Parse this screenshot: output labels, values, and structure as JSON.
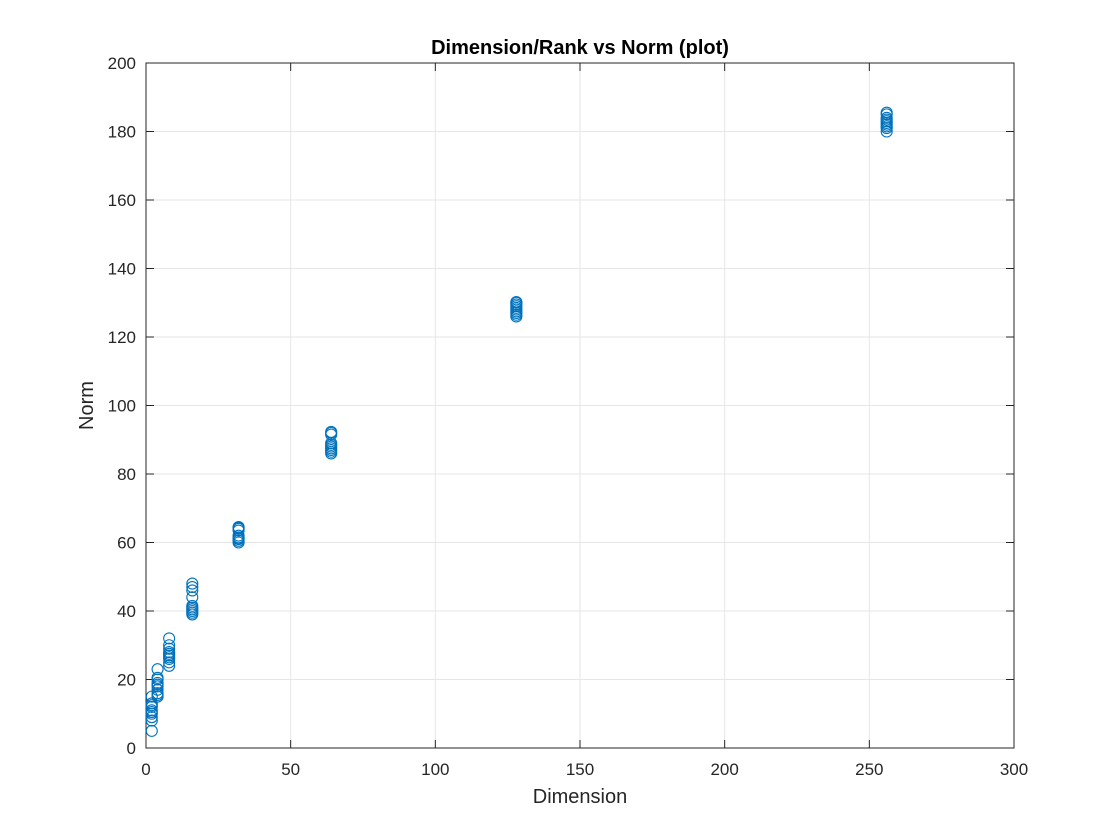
{
  "chart_data": {
    "type": "scatter",
    "title": "Dimension/Rank vs Norm (plot)",
    "xlabel": "Dimension",
    "ylabel": "Norm",
    "xlim": [
      0,
      300
    ],
    "ylim": [
      0,
      200
    ],
    "xticks": [
      0,
      50,
      100,
      150,
      200,
      250,
      300
    ],
    "yticks": [
      0,
      20,
      40,
      60,
      80,
      100,
      120,
      140,
      160,
      180,
      200
    ],
    "xtick_labels": [
      "0",
      "50",
      "100",
      "150",
      "200",
      "250",
      "300"
    ],
    "ytick_labels": [
      "0",
      "20",
      "40",
      "60",
      "80",
      "100",
      "120",
      "140",
      "160",
      "180",
      "200"
    ],
    "grid": true,
    "marker": "circle-open",
    "color": "#0072BD",
    "series": [
      {
        "x": [
          2,
          2,
          2,
          2,
          2,
          2,
          2,
          2,
          2,
          2,
          4,
          4,
          4,
          4,
          4,
          4,
          4,
          4,
          4,
          4,
          8,
          8,
          8,
          8,
          8,
          8,
          8,
          8,
          8,
          8,
          16,
          16,
          16,
          16,
          16,
          16,
          16,
          16,
          16,
          16,
          32,
          32,
          32,
          32,
          32,
          32,
          32,
          32,
          32,
          32,
          64,
          64,
          64,
          64,
          64,
          64,
          64,
          64,
          64,
          64,
          128,
          128,
          128,
          128,
          128,
          128,
          128,
          128,
          128,
          128,
          256,
          256,
          256,
          256,
          256,
          256,
          256,
          256,
          256,
          256
        ],
        "y": [
          5,
          8,
          9,
          10,
          10.5,
          11,
          12,
          12.5,
          13,
          15,
          15,
          15.5,
          16,
          17,
          18,
          18.5,
          19,
          20,
          20.5,
          23,
          24,
          25,
          26,
          26.5,
          27,
          27.5,
          28,
          29,
          30,
          32,
          39,
          39.5,
          40,
          40.5,
          41,
          41.5,
          44,
          46,
          47,
          48,
          60,
          60.5,
          61,
          61.2,
          61.5,
          62,
          63.5,
          64,
          64.3,
          64.5,
          86,
          86.5,
          87,
          87.5,
          88,
          88.5,
          89,
          91.5,
          92,
          92.3,
          126,
          126.5,
          127,
          127.5,
          128,
          128.5,
          129,
          129.5,
          130,
          130.2,
          180,
          181,
          181.5,
          182,
          182.5,
          183,
          183.5,
          184,
          185,
          185.5
        ]
      }
    ]
  }
}
